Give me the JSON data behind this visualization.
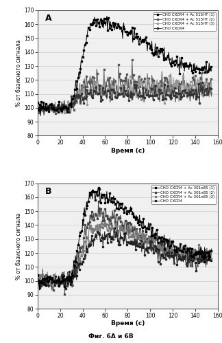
{
  "title_A": "A",
  "title_B": "B",
  "xlabel": "Время (с)",
  "ylabel": "% от базисного сигнала",
  "caption": "Фиг. 6А и 6В",
  "xlim": [
    0,
    160
  ],
  "ylim": [
    80,
    170
  ],
  "yticks": [
    80,
    90,
    100,
    110,
    120,
    130,
    140,
    150,
    160,
    170
  ],
  "xticks": [
    0,
    20,
    40,
    60,
    80,
    100,
    120,
    140,
    160
  ],
  "legend_A": [
    "CHO CXCR4 + Ac 515HT (1)",
    "CHO CXCR4 + Ac 515HT (2)",
    "CHO CXCR4 + Ac 515HT (3)",
    "CHO CXCR4"
  ],
  "legend_B": [
    "CHO CXCR4 + Ac 301n85 (1)",
    "CHO CXCR4 + Ac 301n85 (2)",
    "CHO CXCR4 + Ac 301n85 (3)",
    "CHO CXCR4"
  ],
  "line_colors_A": [
    "#000000",
    "#555555",
    "#999999",
    "#333333"
  ],
  "line_colors_B": [
    "#000000",
    "#444444",
    "#777777",
    "#222222"
  ],
  "background_color": "#f0f0f0",
  "fig_background": "#ffffff",
  "grid_color": "#cccccc"
}
